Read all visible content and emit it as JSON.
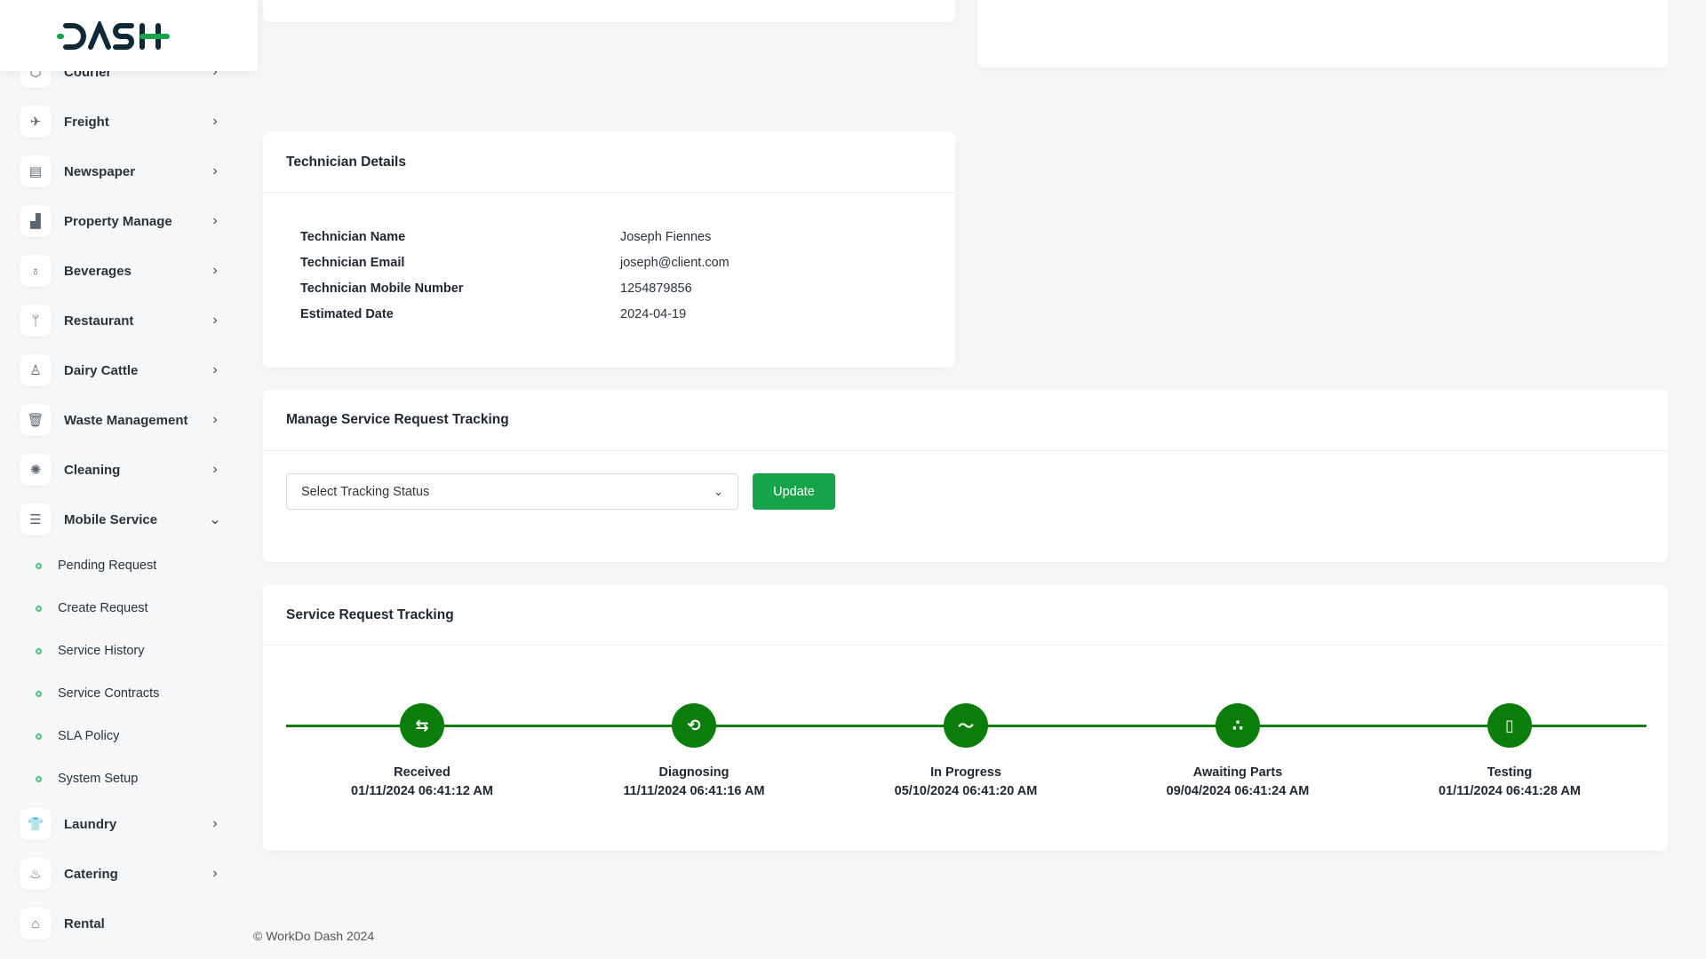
{
  "brand": {
    "logo_text": "DASH",
    "accent": "#16a34a"
  },
  "sidebar": {
    "items": [
      {
        "label": "Courier",
        "icon": "box-icon",
        "glyph": "⬡"
      },
      {
        "label": "Freight",
        "icon": "plane-icon",
        "glyph": "✈"
      },
      {
        "label": "Newspaper",
        "icon": "newspaper-icon",
        "glyph": "▤"
      },
      {
        "label": "Property Manage",
        "icon": "building-icon",
        "glyph": "▟"
      },
      {
        "label": "Beverages",
        "icon": "glass-icon",
        "glyph": "♁"
      },
      {
        "label": "Restaurant",
        "icon": "utensils-icon",
        "glyph": "ᛘ"
      },
      {
        "label": "Dairy Cattle",
        "icon": "bottle-icon",
        "glyph": "♙"
      },
      {
        "label": "Waste Management",
        "icon": "trash-icon",
        "glyph": "🗑"
      },
      {
        "label": "Cleaning",
        "icon": "sparkle-icon",
        "glyph": "✺"
      },
      {
        "label": "Mobile Service",
        "icon": "menu-icon",
        "glyph": "☰"
      }
    ],
    "sub_items": [
      "Pending Request",
      "Create Request",
      "Service History",
      "Service Contracts",
      "SLA Policy",
      "System Setup"
    ],
    "items_after": [
      {
        "label": "Laundry",
        "icon": "shirt-icon",
        "glyph": "👕"
      },
      {
        "label": "Catering",
        "icon": "bowl-icon",
        "glyph": "♨"
      },
      {
        "label": "Rental",
        "icon": "home-icon",
        "glyph": "⌂"
      }
    ]
  },
  "technician": {
    "title": "Technician Details",
    "rows": [
      {
        "label": "Technician Name",
        "value": "Joseph Fiennes"
      },
      {
        "label": "Technician Email",
        "value": "joseph@client.com"
      },
      {
        "label": "Technician Mobile Number",
        "value": "1254879856"
      },
      {
        "label": "Estimated Date",
        "value": "2024-04-19"
      }
    ]
  },
  "manage": {
    "title": "Manage Service Request Tracking",
    "select_placeholder": "Select Tracking Status",
    "update_label": "Update"
  },
  "tracking": {
    "title": "Service Request Tracking",
    "color": "#0a7d0a",
    "steps": [
      {
        "label": "Received",
        "date": "01/11/2024 06:41:12 AM",
        "icon": "arrows-swap-icon",
        "glyph": "⇆"
      },
      {
        "label": "Diagnosing",
        "date": "11/11/2024 06:41:16 AM",
        "icon": "repeat-icon",
        "glyph": "⟲"
      },
      {
        "label": "In Progress",
        "date": "05/10/2024 06:41:20 AM",
        "icon": "trend-icon",
        "glyph": "〜"
      },
      {
        "label": "Awaiting Parts",
        "date": "09/04/2024 06:41:24 AM",
        "icon": "parts-icon",
        "glyph": "∴"
      },
      {
        "label": "Testing",
        "date": "01/11/2024 06:41:28 AM",
        "icon": "device-test-icon",
        "glyph": "▯"
      }
    ]
  },
  "footer": {
    "text": "© WorkDo Dash 2024"
  }
}
